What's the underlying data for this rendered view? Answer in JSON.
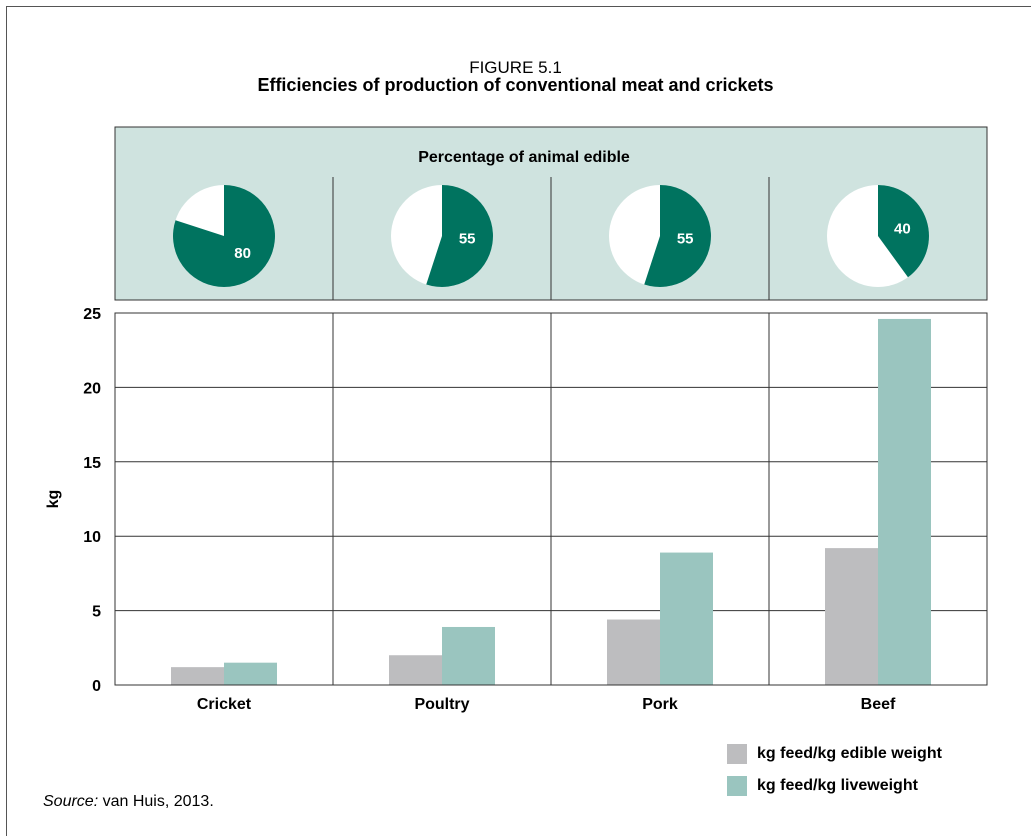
{
  "figure_label": "FIGURE 5.1",
  "title": "Efficiencies of production of conventional meat and crickets",
  "source_prefix": "Source:",
  "source_text": " van Huis, 2013.",
  "colors": {
    "panel_bg": "#cfe3df",
    "teal_dark": "#00735f",
    "edible_bar": "#bdbdbf",
    "live_bar": "#9ac5bf"
  },
  "chart_data": [
    {
      "type": "pie",
      "title": "Percentage of animal edible",
      "categories": [
        "Cricket",
        "Poultry",
        "Pork",
        "Beef"
      ],
      "values": [
        80,
        55,
        55,
        40
      ],
      "labels": [
        "80",
        "55",
        "55",
        "40"
      ]
    },
    {
      "type": "bar",
      "categories": [
        "Cricket",
        "Poultry",
        "Pork",
        "Beef"
      ],
      "ylabel": "kg",
      "ylim": [
        0,
        25
      ],
      "yticks": [
        0,
        5,
        10,
        15,
        20,
        25
      ],
      "grid": true,
      "legend_position": "bottom-right",
      "series": [
        {
          "name": "kg feed/kg edible weight",
          "values": [
            1.2,
            2.0,
            4.4,
            9.2
          ]
        },
        {
          "name": "kg feed/kg liveweight",
          "values": [
            1.5,
            3.9,
            8.9,
            24.6
          ]
        }
      ]
    }
  ]
}
